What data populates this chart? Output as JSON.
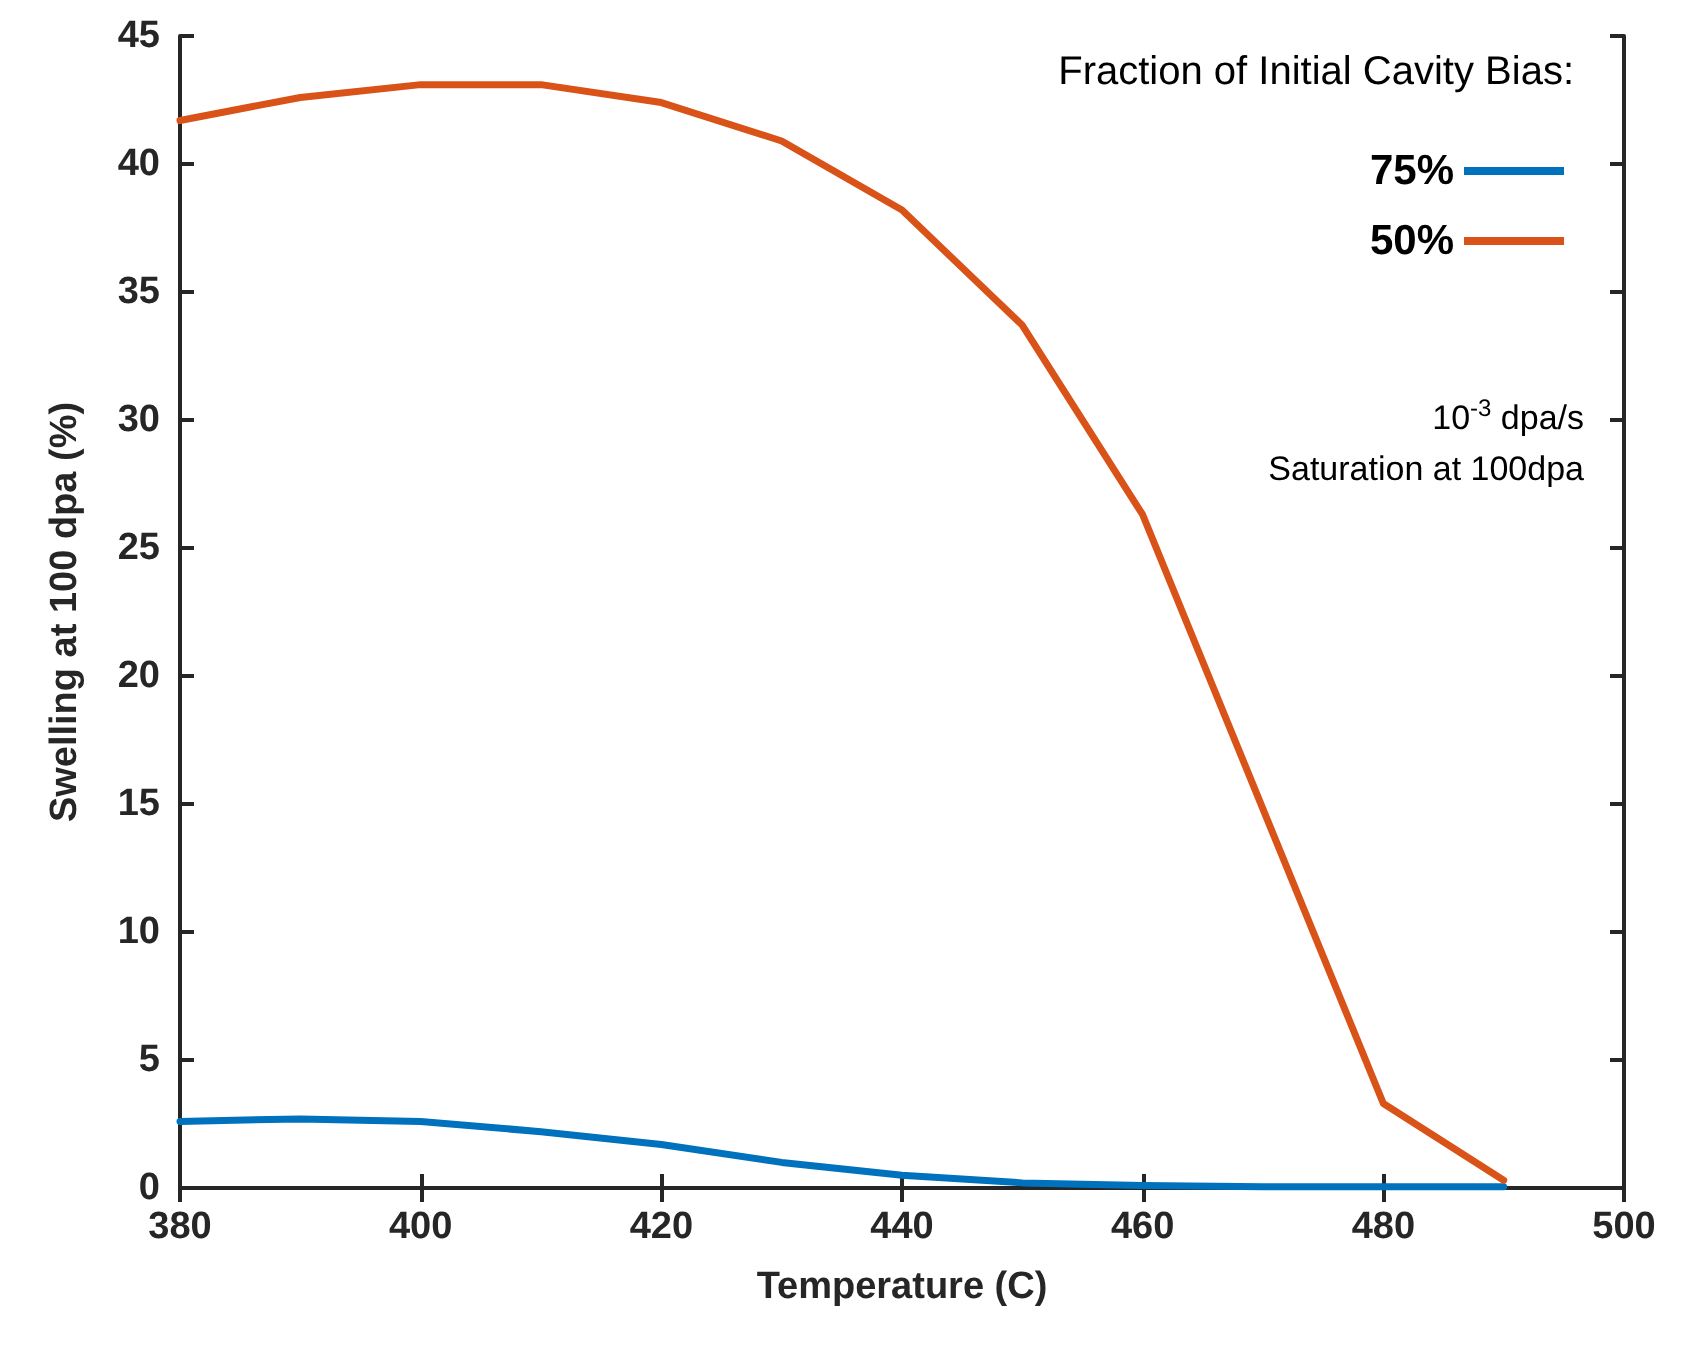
{
  "chart_data": {
    "type": "line",
    "xlabel": "Temperature (C)",
    "ylabel": "Swelling at 100 dpa (%)",
    "legend_title": "Fraction of Initial Cavity Bias:",
    "x": [
      380,
      390,
      400,
      410,
      420,
      430,
      440,
      450,
      460,
      470,
      480,
      490
    ],
    "series": [
      {
        "name": "75%",
        "color": "#0072bd",
        "values": [
          2.6,
          2.7,
          2.6,
          2.2,
          1.7,
          1.0,
          0.5,
          0.2,
          0.1,
          0.05,
          0.05,
          0.05
        ]
      },
      {
        "name": "50%",
        "color": "#d95319",
        "values": [
          41.7,
          42.6,
          43.1,
          43.1,
          42.4,
          40.9,
          38.2,
          33.7,
          26.3,
          14.8,
          3.3,
          0.3
        ]
      }
    ],
    "xlim": [
      380,
      500
    ],
    "xticks": [
      380,
      400,
      420,
      440,
      460,
      480,
      500
    ],
    "ylim": [
      0,
      45
    ],
    "yticks": [
      0,
      5,
      10,
      15,
      20,
      25,
      30,
      35,
      40,
      45
    ],
    "grid": false,
    "legend": "top right",
    "marker": "none",
    "line_style": "solid",
    "annotations": [
      "10$^{-3}$ dpa/s",
      "Saturation at 100dpa"
    ]
  }
}
